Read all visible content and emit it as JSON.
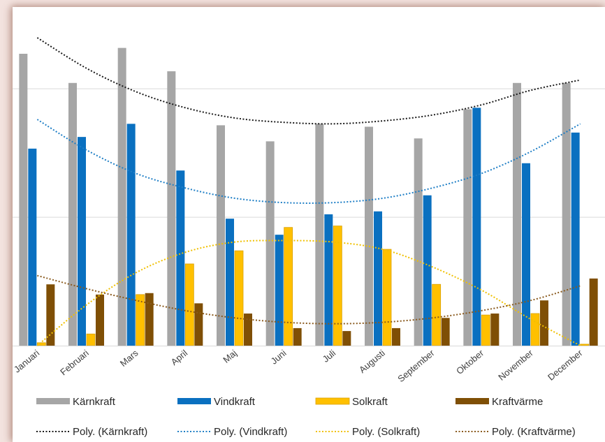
{
  "chart_data": {
    "type": "bar",
    "categories": [
      "Januari",
      "Februari",
      "Mars",
      "April",
      "Maj",
      "Juni",
      "Juli",
      "Augusti",
      "September",
      "Oktober",
      "November",
      "December"
    ],
    "series": [
      {
        "name": "Kärnkraft",
        "color": "#a6a6a6",
        "values": [
          100,
          90,
          102,
          94,
          75.5,
          70,
          76,
          75,
          71,
          81,
          90,
          90
        ]
      },
      {
        "name": "Vindkraft",
        "color": "#0a70c0",
        "values": [
          67.5,
          71.5,
          76,
          60,
          43.5,
          38,
          45,
          46,
          51.5,
          81.5,
          62.5,
          73
        ]
      },
      {
        "name": "Solkraft",
        "color": "#ffc000",
        "values": [
          1,
          4,
          17.5,
          28,
          32.5,
          40.5,
          41,
          33,
          21,
          10.5,
          11,
          0.5
        ]
      },
      {
        "name": "Kraftvärme",
        "color": "#7f4f05",
        "values": [
          21,
          17.5,
          18,
          14.5,
          11,
          6,
          5,
          6,
          9.5,
          11,
          15.5,
          23
        ]
      }
    ],
    "trendlines": [
      {
        "name": "Poly. (Kärnkraft)",
        "series": "Kärnkraft",
        "color": "#1a1a1a",
        "points": [
          105.5,
          95,
          87,
          81.5,
          78,
          76.5,
          76,
          77,
          79,
          82.5,
          87.5,
          91
        ]
      },
      {
        "name": "Poly. (Vindkraft)",
        "series": "Vindkraft",
        "color": "#1f7fc6",
        "points": [
          77.5,
          67,
          59,
          54,
          50.5,
          49,
          49,
          50.5,
          54,
          59,
          66.5,
          76
        ]
      },
      {
        "name": "Poly. (Solkraft)",
        "series": "Solkraft",
        "color": "#f0c000",
        "points": [
          0,
          14,
          25,
          32,
          35.5,
          36,
          35.5,
          33,
          27,
          19,
          9,
          0
        ]
      },
      {
        "name": "Poly. (Kraftvärme)",
        "series": "Kraftvärme",
        "color": "#8a5a1e",
        "points": [
          24,
          19.5,
          15.5,
          12,
          9.5,
          8,
          7.5,
          8,
          9.5,
          12,
          15.5,
          20.5
        ]
      }
    ],
    "ylim": [
      0,
      110
    ],
    "grid": true,
    "legend": "bottom",
    "xlabel": "",
    "ylabel": "",
    "title": ""
  }
}
